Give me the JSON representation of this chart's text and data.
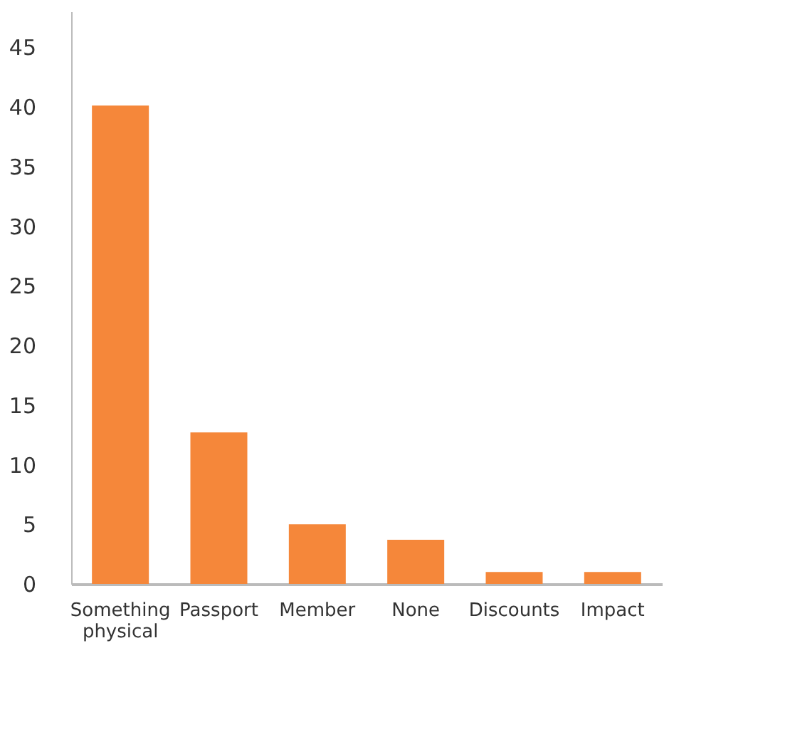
{
  "chart_data": {
    "type": "bar",
    "categories": [
      "Something physical",
      "Passport",
      "Member",
      "None",
      "Discounts",
      "Impact"
    ],
    "values": [
      40.1,
      12.7,
      5.0,
      3.7,
      1.0,
      1.0
    ],
    "color": "#f5873a",
    "ylim": [
      0,
      48
    ],
    "yticks": [
      0,
      5,
      10,
      15,
      20,
      25,
      30,
      35,
      40,
      45
    ],
    "grid": false
  }
}
